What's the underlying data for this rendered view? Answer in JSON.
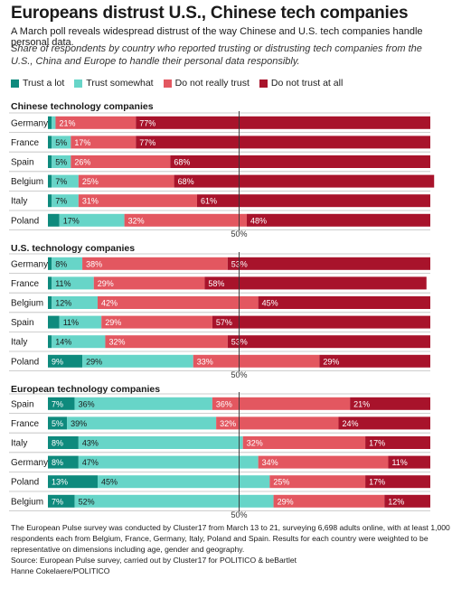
{
  "title": "Europeans distrust U.S., Chinese tech companies",
  "subtitle": "A March poll reveals widespread distrust of the way Chinese and U.S. tech companies handle personal data.",
  "note": "Share of respondents by country who reported trusting or distrusting tech companies from the U.S., China and Europe to handle their personal data responsibly.",
  "colors": {
    "trust_a_lot": "#0e8a7d",
    "trust_somewhat": "#67d5c8",
    "not_really": "#e35760",
    "not_at_all": "#a8132b"
  },
  "footer": {
    "line1": "The European Pulse survey was conducted by Cluster17 from March 13 to 21, surveying 6,698 adults online, with at least 1,000",
    "line2": "respondents each from Belgium, France, Germany, Italy, Poland and Spain. Results for each country were weighted to be",
    "line3": "representative on dimensions including age, gender and geography.",
    "line4": "Source: European Pulse survey, carried out by Cluster17 for POLITICO & beBartlet",
    "line5": "Hanne Cokelaere/POLITICO"
  },
  "chart_data": [
    {
      "type": "bar",
      "stacked": true,
      "orientation": "horizontal",
      "title": "Chinese technology companies",
      "categories": [
        "Germany",
        "France",
        "Spain",
        "Belgium",
        "Italy",
        "Poland"
      ],
      "series": [
        {
          "name": "Trust a lot",
          "values": [
            1,
            1,
            1,
            1,
            1,
            3
          ]
        },
        {
          "name": "Trust somewhat",
          "values": [
            1,
            5,
            5,
            7,
            7,
            17
          ]
        },
        {
          "name": "Do not really trust",
          "values": [
            21,
            17,
            26,
            25,
            31,
            32
          ]
        },
        {
          "name": "Do not trust at all",
          "values": [
            77,
            77,
            68,
            68,
            61,
            48
          ]
        }
      ],
      "labels": [
        [
          "",
          "",
          "21%",
          "77%"
        ],
        [
          "",
          "5%",
          "17%",
          "77%"
        ],
        [
          "",
          "5%",
          "26%",
          "68%"
        ],
        [
          "",
          "7%",
          "25%",
          "68%"
        ],
        [
          "",
          "7%",
          "31%",
          "61%"
        ],
        [
          "",
          "17%",
          "32%",
          "48%"
        ]
      ],
      "reference_line": {
        "value": 50,
        "label": "50%"
      },
      "xlim": [
        0,
        100
      ]
    },
    {
      "type": "bar",
      "stacked": true,
      "orientation": "horizontal",
      "title": "U.S. technology companies",
      "categories": [
        "Germany",
        "France",
        "Belgium",
        "Spain",
        "Italy",
        "Poland"
      ],
      "series": [
        {
          "name": "Trust a lot",
          "values": [
            1,
            1,
            1,
            3,
            1,
            9
          ]
        },
        {
          "name": "Trust somewhat",
          "values": [
            8,
            11,
            12,
            11,
            14,
            29
          ]
        },
        {
          "name": "Do not really trust",
          "values": [
            38,
            29,
            42,
            29,
            32,
            33
          ]
        },
        {
          "name": "Do not trust at all",
          "values": [
            53,
            58,
            45,
            57,
            53,
            29
          ]
        }
      ],
      "labels": [
        [
          "",
          "8%",
          "38%",
          "53%"
        ],
        [
          "",
          "11%",
          "29%",
          "58%"
        ],
        [
          "",
          "12%",
          "42%",
          "45%"
        ],
        [
          "",
          "11%",
          "29%",
          "57%"
        ],
        [
          "",
          "14%",
          "32%",
          "53%"
        ],
        [
          "9%",
          "29%",
          "33%",
          "29%"
        ]
      ],
      "reference_line": {
        "value": 50,
        "label": "50%"
      },
      "xlim": [
        0,
        100
      ]
    },
    {
      "type": "bar",
      "stacked": true,
      "orientation": "horizontal",
      "title": "European technology companies",
      "categories": [
        "Spain",
        "France",
        "Italy",
        "Germany",
        "Poland",
        "Belgium"
      ],
      "series": [
        {
          "name": "Trust a lot",
          "values": [
            7,
            5,
            8,
            8,
            13,
            7
          ]
        },
        {
          "name": "Trust somewhat",
          "values": [
            36,
            39,
            43,
            47,
            45,
            52
          ]
        },
        {
          "name": "Do not really trust",
          "values": [
            36,
            32,
            32,
            34,
            25,
            29
          ]
        },
        {
          "name": "Do not trust at all",
          "values": [
            21,
            24,
            17,
            11,
            17,
            12
          ]
        }
      ],
      "labels": [
        [
          "7%",
          "36%",
          "36%",
          "21%"
        ],
        [
          "5%",
          "39%",
          "32%",
          "24%"
        ],
        [
          "8%",
          "43%",
          "32%",
          "17%"
        ],
        [
          "8%",
          "47%",
          "34%",
          "11%"
        ],
        [
          "13%",
          "45%",
          "25%",
          "17%"
        ],
        [
          "7%",
          "52%",
          "29%",
          "12%"
        ]
      ],
      "reference_line": {
        "value": 50,
        "label": "50%"
      },
      "xlim": [
        0,
        100
      ]
    }
  ]
}
